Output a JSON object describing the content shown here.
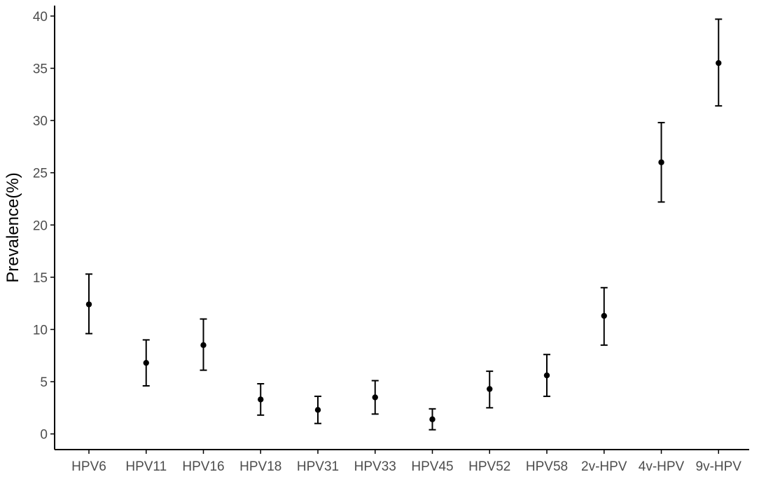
{
  "chart_data": {
    "type": "scatter",
    "title": "",
    "xlabel": "",
    "ylabel": "Prevalence(%)",
    "ylim": [
      -1.5,
      41
    ],
    "yticks": [
      0,
      5,
      10,
      15,
      20,
      25,
      30,
      35,
      40
    ],
    "ytick_labels": [
      "0",
      "5",
      "10",
      "15",
      "20",
      "25",
      "30",
      "35",
      "40"
    ],
    "grid": false,
    "legend": "none",
    "categories": [
      "HPV6",
      "HPV11",
      "HPV16",
      "HPV18",
      "HPV31",
      "HPV33",
      "HPV45",
      "HPV52",
      "HPV58",
      "2v-HPV",
      "4v-HPV",
      "9v-HPV"
    ],
    "values": [
      12.4,
      6.8,
      8.5,
      3.3,
      2.3,
      3.5,
      1.4,
      4.3,
      5.6,
      11.3,
      26.0,
      35.5
    ],
    "lower": [
      9.6,
      4.6,
      6.1,
      1.8,
      1.0,
      1.9,
      0.4,
      2.5,
      3.6,
      8.5,
      22.2,
      31.4
    ],
    "upper": [
      15.3,
      9.0,
      11.0,
      4.8,
      3.6,
      5.1,
      2.4,
      6.0,
      7.6,
      14.0,
      29.8,
      39.7
    ],
    "colors": {
      "point": "#000000",
      "errorbar": "#000000",
      "axis": "#000000",
      "tick_text": "#4d4d4d"
    }
  }
}
